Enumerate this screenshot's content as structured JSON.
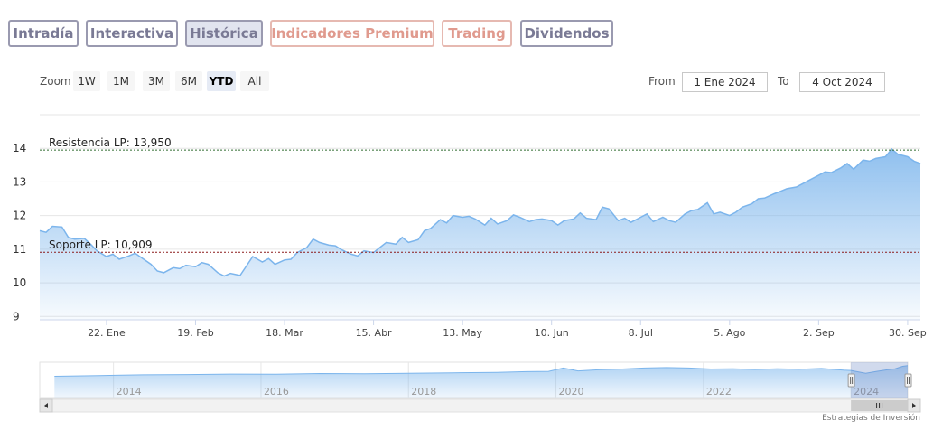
{
  "tabs": [
    {
      "label": "Intradía",
      "active": false,
      "premium": false
    },
    {
      "label": "Interactiva",
      "active": false,
      "premium": false
    },
    {
      "label": "Histórica",
      "active": true,
      "premium": false
    },
    {
      "label": "Indicadores Premium",
      "active": false,
      "premium": true
    },
    {
      "label": "Trading",
      "active": false,
      "premium": true
    },
    {
      "label": "Dividendos",
      "active": false,
      "premium": false
    }
  ],
  "zoom": {
    "label": "Zoom",
    "buttons": [
      "1W",
      "1M",
      "3M",
      "6M",
      "YTD",
      "All"
    ],
    "selected": "YTD"
  },
  "range": {
    "from_label": "From",
    "from_value": "1 Ene 2024",
    "to_label": "To",
    "to_value": "4 Oct 2024"
  },
  "credit": "Estrategias de Inversión",
  "colors": {
    "line": "#7cb5ec",
    "resistance": "#2f6b2f",
    "support": "#8b1a1a",
    "tab_border": "#9a9ab0",
    "premium": "#e09a8e"
  },
  "chart_data": {
    "type": "area",
    "x_start": "2024-01-01",
    "x_end": "2024-10-04",
    "xticks": [
      {
        "date": "2024-01-22",
        "label": "22. Ene"
      },
      {
        "date": "2024-02-19",
        "label": "19. Feb"
      },
      {
        "date": "2024-03-18",
        "label": "18. Mar"
      },
      {
        "date": "2024-04-15",
        "label": "15. Abr"
      },
      {
        "date": "2024-05-13",
        "label": "13. May"
      },
      {
        "date": "2024-06-10",
        "label": "10. Jun"
      },
      {
        "date": "2024-07-08",
        "label": "8. Jul"
      },
      {
        "date": "2024-08-05",
        "label": "5. Ago"
      },
      {
        "date": "2024-09-02",
        "label": "2. Sep"
      },
      {
        "date": "2024-09-30",
        "label": "30. Sep"
      }
    ],
    "yticks": [
      9,
      10,
      11,
      12,
      13,
      14
    ],
    "ylim": [
      8.9,
      15.0
    ],
    "grid": true,
    "lines": [
      {
        "label": "Resistencia LP: 13,950",
        "value": 13.95,
        "kind": "resistance"
      },
      {
        "label": "Soporte LP: 10,909",
        "value": 10.909,
        "kind": "support"
      }
    ],
    "points": [
      [
        "2024-01-01",
        11.55
      ],
      [
        "2024-01-03",
        11.5
      ],
      [
        "2024-01-05",
        11.68
      ],
      [
        "2024-01-08",
        11.66
      ],
      [
        "2024-01-10",
        11.35
      ],
      [
        "2024-01-12",
        11.3
      ],
      [
        "2024-01-15",
        11.32
      ],
      [
        "2024-01-17",
        11.15
      ],
      [
        "2024-01-19",
        10.95
      ],
      [
        "2024-01-22",
        10.78
      ],
      [
        "2024-01-24",
        10.85
      ],
      [
        "2024-01-26",
        10.7
      ],
      [
        "2024-01-29",
        10.8
      ],
      [
        "2024-01-31",
        10.88
      ],
      [
        "2024-02-02",
        10.75
      ],
      [
        "2024-02-05",
        10.55
      ],
      [
        "2024-02-07",
        10.35
      ],
      [
        "2024-02-09",
        10.3
      ],
      [
        "2024-02-12",
        10.45
      ],
      [
        "2024-02-14",
        10.42
      ],
      [
        "2024-02-16",
        10.52
      ],
      [
        "2024-02-19",
        10.48
      ],
      [
        "2024-02-21",
        10.6
      ],
      [
        "2024-02-23",
        10.55
      ],
      [
        "2024-02-26",
        10.3
      ],
      [
        "2024-02-28",
        10.2
      ],
      [
        "2024-03-01",
        10.28
      ],
      [
        "2024-03-04",
        10.22
      ],
      [
        "2024-03-06",
        10.5
      ],
      [
        "2024-03-08",
        10.78
      ],
      [
        "2024-03-11",
        10.62
      ],
      [
        "2024-03-13",
        10.72
      ],
      [
        "2024-03-15",
        10.55
      ],
      [
        "2024-03-18",
        10.68
      ],
      [
        "2024-03-20",
        10.7
      ],
      [
        "2024-03-22",
        10.9
      ],
      [
        "2024-03-25",
        11.05
      ],
      [
        "2024-03-27",
        11.3
      ],
      [
        "2024-03-29",
        11.2
      ],
      [
        "2024-04-01",
        11.12
      ],
      [
        "2024-04-03",
        11.1
      ],
      [
        "2024-04-05",
        10.98
      ],
      [
        "2024-04-08",
        10.85
      ],
      [
        "2024-04-10",
        10.8
      ],
      [
        "2024-04-12",
        10.95
      ],
      [
        "2024-04-15",
        10.9
      ],
      [
        "2024-04-17",
        11.05
      ],
      [
        "2024-04-19",
        11.2
      ],
      [
        "2024-04-22",
        11.15
      ],
      [
        "2024-04-24",
        11.35
      ],
      [
        "2024-04-26",
        11.2
      ],
      [
        "2024-04-29",
        11.28
      ],
      [
        "2024-05-01",
        11.55
      ],
      [
        "2024-05-03",
        11.62
      ],
      [
        "2024-05-06",
        11.88
      ],
      [
        "2024-05-08",
        11.78
      ],
      [
        "2024-05-10",
        12.0
      ],
      [
        "2024-05-13",
        11.95
      ],
      [
        "2024-05-15",
        11.98
      ],
      [
        "2024-05-17",
        11.9
      ],
      [
        "2024-05-20",
        11.72
      ],
      [
        "2024-05-22",
        11.92
      ],
      [
        "2024-05-24",
        11.75
      ],
      [
        "2024-05-27",
        11.85
      ],
      [
        "2024-05-29",
        12.02
      ],
      [
        "2024-05-31",
        11.95
      ],
      [
        "2024-06-03",
        11.82
      ],
      [
        "2024-06-05",
        11.88
      ],
      [
        "2024-06-07",
        11.9
      ],
      [
        "2024-06-10",
        11.85
      ],
      [
        "2024-06-12",
        11.72
      ],
      [
        "2024-06-14",
        11.85
      ],
      [
        "2024-06-17",
        11.9
      ],
      [
        "2024-06-19",
        12.08
      ],
      [
        "2024-06-21",
        11.92
      ],
      [
        "2024-06-24",
        11.88
      ],
      [
        "2024-06-26",
        12.25
      ],
      [
        "2024-06-28",
        12.2
      ],
      [
        "2024-07-01",
        11.85
      ],
      [
        "2024-07-03",
        11.92
      ],
      [
        "2024-07-05",
        11.8
      ],
      [
        "2024-07-08",
        11.95
      ],
      [
        "2024-07-10",
        12.05
      ],
      [
        "2024-07-12",
        11.82
      ],
      [
        "2024-07-15",
        11.95
      ],
      [
        "2024-07-17",
        11.85
      ],
      [
        "2024-07-19",
        11.8
      ],
      [
        "2024-07-22",
        12.05
      ],
      [
        "2024-07-24",
        12.15
      ],
      [
        "2024-07-26",
        12.18
      ],
      [
        "2024-07-29",
        12.38
      ],
      [
        "2024-07-31",
        12.05
      ],
      [
        "2024-08-02",
        12.1
      ],
      [
        "2024-08-05",
        12.0
      ],
      [
        "2024-08-07",
        12.1
      ],
      [
        "2024-08-09",
        12.25
      ],
      [
        "2024-08-12",
        12.35
      ],
      [
        "2024-08-14",
        12.5
      ],
      [
        "2024-08-16",
        12.52
      ],
      [
        "2024-08-19",
        12.65
      ],
      [
        "2024-08-21",
        12.72
      ],
      [
        "2024-08-23",
        12.8
      ],
      [
        "2024-08-26",
        12.85
      ],
      [
        "2024-08-28",
        12.95
      ],
      [
        "2024-08-30",
        13.05
      ],
      [
        "2024-09-02",
        13.2
      ],
      [
        "2024-09-04",
        13.3
      ],
      [
        "2024-09-06",
        13.28
      ],
      [
        "2024-09-09",
        13.42
      ],
      [
        "2024-09-11",
        13.55
      ],
      [
        "2024-09-13",
        13.38
      ],
      [
        "2024-09-16",
        13.65
      ],
      [
        "2024-09-18",
        13.62
      ],
      [
        "2024-09-20",
        13.7
      ],
      [
        "2024-09-23",
        13.75
      ],
      [
        "2024-09-25",
        13.98
      ],
      [
        "2024-09-27",
        13.82
      ],
      [
        "2024-09-30",
        13.75
      ],
      [
        "2024-10-02",
        13.62
      ],
      [
        "2024-10-04",
        13.55
      ]
    ],
    "navigator": {
      "xlim": [
        2013.0,
        2024.77
      ],
      "xticks": [
        2014,
        2016,
        2018,
        2020,
        2022,
        2024
      ],
      "ylim": [
        0,
        15
      ],
      "points": [
        [
          2013.2,
          9.2
        ],
        [
          2013.8,
          9.5
        ],
        [
          2014.4,
          9.8
        ],
        [
          2015.0,
          9.9
        ],
        [
          2015.6,
          10.1
        ],
        [
          2016.2,
          10.0
        ],
        [
          2016.8,
          10.3
        ],
        [
          2017.4,
          10.2
        ],
        [
          2018.0,
          10.4
        ],
        [
          2018.6,
          10.6
        ],
        [
          2019.2,
          10.8
        ],
        [
          2019.6,
          11.1
        ],
        [
          2019.9,
          11.2
        ],
        [
          2020.1,
          12.6
        ],
        [
          2020.3,
          11.4
        ],
        [
          2020.6,
          11.9
        ],
        [
          2020.9,
          12.2
        ],
        [
          2021.2,
          12.6
        ],
        [
          2021.5,
          12.8
        ],
        [
          2021.8,
          12.6
        ],
        [
          2022.1,
          12.2
        ],
        [
          2022.4,
          12.3
        ],
        [
          2022.7,
          12.0
        ],
        [
          2023.0,
          12.3
        ],
        [
          2023.3,
          12.1
        ],
        [
          2023.6,
          12.4
        ],
        [
          2023.9,
          11.7
        ],
        [
          2024.0,
          11.6
        ],
        [
          2024.2,
          10.4
        ],
        [
          2024.35,
          11.2
        ],
        [
          2024.5,
          11.9
        ],
        [
          2024.6,
          12.3
        ],
        [
          2024.7,
          13.3
        ],
        [
          2024.77,
          13.6
        ]
      ],
      "selection": [
        2024.0,
        2024.77
      ]
    }
  }
}
